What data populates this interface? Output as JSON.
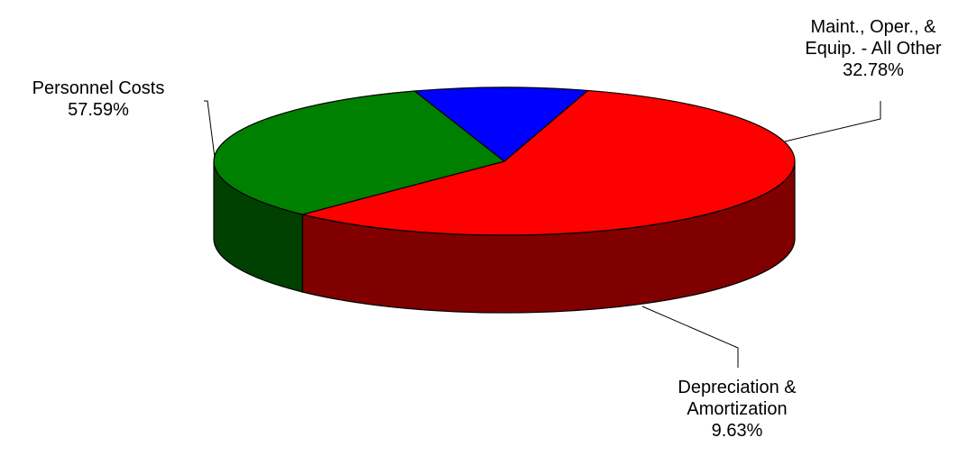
{
  "chart_data": {
    "type": "pie",
    "title": "",
    "slices": [
      {
        "label_lines": [
          "Personnel Costs"
        ],
        "percent_label": "57.59%",
        "value": 57.59,
        "top_color": "#ff0000",
        "side_color": "#800000"
      },
      {
        "label_lines": [
          "Maint., Oper., &",
          "Equip. - All Other"
        ],
        "percent_label": "32.78%",
        "value": 32.78,
        "top_color": "#008000",
        "side_color": "#004000"
      },
      {
        "label_lines": [
          "Depreciation &",
          "Amortization"
        ],
        "percent_label": "9.63%",
        "value": 9.63,
        "top_color": "#0000ff",
        "side_color": "#000080"
      }
    ]
  }
}
